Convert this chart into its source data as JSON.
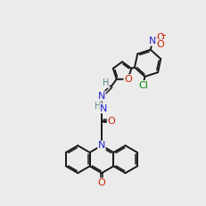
{
  "bg_color": "#ebebeb",
  "bond_color": "#1a1a1a",
  "N_color": "#2222cc",
  "O_color": "#cc2200",
  "Cl_color": "#008800",
  "H_color": "#558888",
  "title": "N-{(E)-[5-(2-chloro-5-nitrophenyl)furan-2-yl]methylidene}-2-(9-oxoacridin-10(9H)-yl)acetohydrazide",
  "lw": 1.4,
  "lw2": 1.1
}
